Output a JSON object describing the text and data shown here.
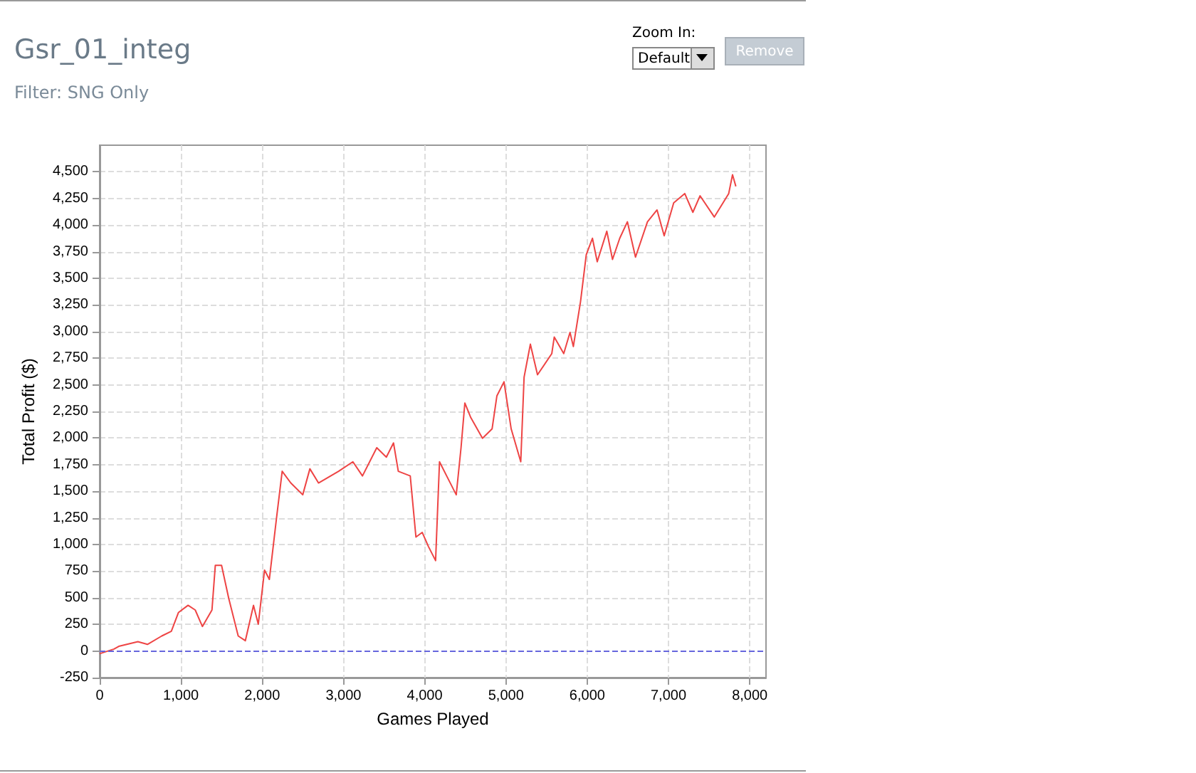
{
  "chart_data": {
    "type": "line",
    "title": "Gsr_01_integ",
    "subtitle": "Filter: SNG Only",
    "xlabel": "Games Played",
    "ylabel": "Total Profit ($)",
    "annotations": [
      "Zoom In:",
      "Default",
      "Remove"
    ],
    "xlim": [
      0,
      8200
    ],
    "ylim": [
      -250,
      4750
    ],
    "xticks": [
      0,
      {
        "value": 1000,
        "label": "1,000"
      },
      {
        "value": 2000,
        "label": "2,000"
      },
      {
        "value": 3000,
        "label": "3,000"
      },
      {
        "value": 4000,
        "label": "4,000"
      },
      {
        "value": 5000,
        "label": "5,000"
      },
      {
        "value": 6000,
        "label": "6,000"
      },
      {
        "value": 7000,
        "label": "7,000"
      },
      {
        "value": 8000,
        "label": "8,000"
      }
    ],
    "yticks": [
      -250,
      0,
      250,
      500,
      750,
      {
        "value": 1000,
        "label": "1,000"
      },
      {
        "value": 1250,
        "label": "1,250"
      },
      {
        "value": 1500,
        "label": "1,500"
      },
      {
        "value": 1750,
        "label": "1,750"
      },
      {
        "value": 2000,
        "label": "2,000"
      },
      {
        "value": 2250,
        "label": "2,250"
      },
      {
        "value": 2500,
        "label": "2,500"
      },
      {
        "value": 2750,
        "label": "2,750"
      },
      {
        "value": 3000,
        "label": "3,000"
      },
      {
        "value": 3250,
        "label": "3,250"
      },
      {
        "value": 3500,
        "label": "3,500"
      },
      {
        "value": 3750,
        "label": "3,750"
      },
      {
        "value": 4000,
        "label": "4,000"
      },
      {
        "value": 4250,
        "label": "4,250"
      },
      {
        "value": 4500,
        "label": "4,500"
      }
    ],
    "grid": true,
    "marker": "none",
    "line_style": "solid",
    "ref_lines": [
      {
        "axis": "y",
        "value": 0,
        "label": null,
        "color": "#6666dd",
        "line_style": "dashed"
      }
    ],
    "series": [
      {
        "color": "#ee4444",
        "x": [
          0,
          176,
          235,
          470,
          588,
          764,
          882,
          970,
          1088,
          1176,
          1264,
          1382,
          1423,
          1500,
          1588,
          1705,
          1793,
          1893,
          1952,
          2029,
          2088,
          2176,
          2246,
          2352,
          2499,
          2587,
          2693,
          2940,
          3116,
          3234,
          3410,
          3528,
          3616,
          3675,
          3822,
          3892,
          3969,
          4046,
          4134,
          4182,
          4270,
          4388,
          4447,
          4494,
          4564,
          4711,
          4829,
          4888,
          4976,
          5064,
          5182,
          5223,
          5300,
          5388,
          5564,
          5594,
          5711,
          5788,
          5829,
          5917,
          5988,
          6064,
          6123,
          6241,
          6311,
          6400,
          6494,
          6594,
          6741,
          6859,
          6947,
          7064,
          7200,
          7300,
          7388,
          7564,
          7741,
          7788,
          7829
        ],
        "values": [
          -25,
          18,
          44,
          88,
          62,
          141,
          186,
          362,
          429,
          385,
          230,
          385,
          804,
          804,
          495,
          141,
          97,
          429,
          252,
          760,
          672,
          1246,
          1688,
          1578,
          1467,
          1711,
          1578,
          1688,
          1777,
          1644,
          1909,
          1821,
          1954,
          1688,
          1644,
          1070,
          1114,
          981,
          849,
          1777,
          1644,
          1467,
          1909,
          2329,
          2197,
          1998,
          2086,
          2395,
          2528,
          2086,
          1777,
          2572,
          2881,
          2594,
          2793,
          2948,
          2793,
          2992,
          2859,
          3279,
          3721,
          3876,
          3655,
          3942,
          3677,
          3876,
          4031,
          3699,
          4031,
          4142,
          3899,
          4208,
          4296,
          4120,
          4275,
          4076,
          4296,
          4473,
          4363
        ]
      }
    ]
  }
}
